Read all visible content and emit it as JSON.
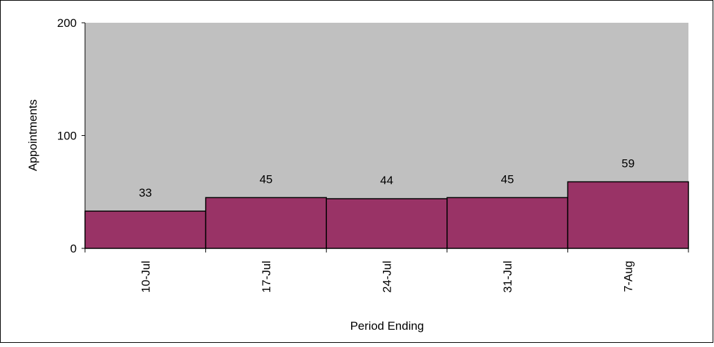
{
  "chart_data": {
    "type": "bar",
    "categories": [
      "10-Jul",
      "17-Jul",
      "24-Jul",
      "31-Jul",
      "7-Aug"
    ],
    "values": [
      33,
      45,
      44,
      45,
      59
    ],
    "color": "#993366",
    "ylim": [
      0,
      200
    ],
    "yticks": [
      0,
      100,
      200
    ],
    "x_label": "Period Ending",
    "y_label": "Appointments"
  }
}
